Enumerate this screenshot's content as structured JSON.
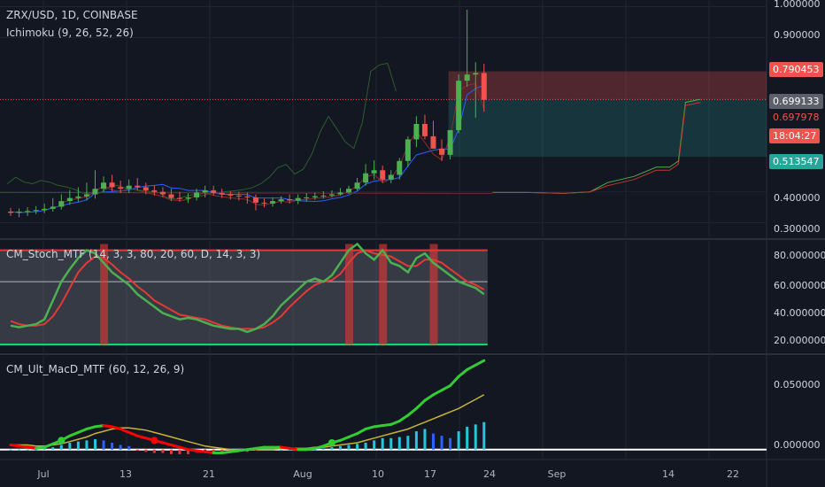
{
  "header": {
    "symbol": "ZRX/USD, 1D, COINBASE",
    "indicator1": "Ichimoku (9, 26, 52, 26)",
    "indicator2": "CM_Stoch_MTF (14, 3, 3, 80, 20, 60, D, 14, 3, 3)",
    "indicator3": "CM_Ult_MacD_MTF (60, 12, 26, 9)"
  },
  "price_axis": {
    "ticks": [
      "1.000000",
      "0.900000",
      "0.400000",
      "0.300000"
    ],
    "tags": {
      "red_zone": "0.790453",
      "current": "0.699133",
      "last": "0.697978",
      "countdown": "18:04:27",
      "green_zone": "0.513547"
    }
  },
  "stoch_axis": {
    "ticks": [
      "80.000000",
      "60.000000",
      "40.000000",
      "20.000000"
    ]
  },
  "macd_axis": {
    "ticks": [
      "0.050000",
      "0.000000"
    ]
  },
  "x_axis": {
    "ticks": [
      "Jul",
      "13",
      "21",
      "Aug",
      "10",
      "17",
      "24",
      "Sep",
      "14",
      "22"
    ]
  },
  "colors": {
    "background": "#131722",
    "bull": "#26a69a",
    "bull_green": "#4caf50",
    "bear": "#ef5350",
    "stoch_fast": "#4caf50",
    "stoch_slow": "#e53935",
    "macd_line_up": "#32cd32",
    "macd_line_down": "#ff0000",
    "signal": "#c8b432"
  },
  "chart_data": [
    {
      "type": "candlestick",
      "panel": "price",
      "x": [
        "Jun 27",
        "Jun 28",
        "Jun 29",
        "Jun 30",
        "Jul 1",
        "Jul 2",
        "Jul 3",
        "Jul 4",
        "Jul 5",
        "Jul 6",
        "Jul 7",
        "Jul 8",
        "Jul 9",
        "Jul 10",
        "Jul 11",
        "Jul 12",
        "Jul 13",
        "Jul 14",
        "Jul 15",
        "Jul 16",
        "Jul 17",
        "Jul 18",
        "Jul 19",
        "Jul 20",
        "Jul 21",
        "Jul 22",
        "Jul 23",
        "Jul 24",
        "Jul 25",
        "Jul 26",
        "Jul 27",
        "Jul 28",
        "Jul 29",
        "Jul 30",
        "Jul 31",
        "Aug 1",
        "Aug 2",
        "Aug 3",
        "Aug 4",
        "Aug 5",
        "Aug 6",
        "Aug 7",
        "Aug 8",
        "Aug 9",
        "Aug 10",
        "Aug 11",
        "Aug 12",
        "Aug 13",
        "Aug 14",
        "Aug 15",
        "Aug 16",
        "Aug 17",
        "Aug 18",
        "Aug 19",
        "Aug 20",
        "Aug 21",
        "Aug 22"
      ],
      "open": [
        0.336,
        0.332,
        0.336,
        0.338,
        0.341,
        0.345,
        0.352,
        0.37,
        0.38,
        0.385,
        0.392,
        0.41,
        0.43,
        0.415,
        0.41,
        0.42,
        0.415,
        0.405,
        0.4,
        0.392,
        0.38,
        0.378,
        0.382,
        0.398,
        0.405,
        0.396,
        0.392,
        0.388,
        0.385,
        0.382,
        0.365,
        0.362,
        0.37,
        0.376,
        0.372,
        0.38,
        0.382,
        0.386,
        0.388,
        0.392,
        0.398,
        0.41,
        0.43,
        0.46,
        0.47,
        0.44,
        0.455,
        0.5,
        0.57,
        0.62,
        0.58,
        0.54,
        0.52,
        0.6,
        0.76,
        0.78,
        0.785
      ],
      "high": [
        0.348,
        0.346,
        0.35,
        0.354,
        0.362,
        0.38,
        0.392,
        0.406,
        0.415,
        0.43,
        0.47,
        0.45,
        0.455,
        0.436,
        0.44,
        0.445,
        0.43,
        0.42,
        0.415,
        0.41,
        0.4,
        0.395,
        0.41,
        0.42,
        0.42,
        0.41,
        0.402,
        0.4,
        0.398,
        0.392,
        0.378,
        0.382,
        0.386,
        0.392,
        0.392,
        0.396,
        0.398,
        0.402,
        0.405,
        0.412,
        0.42,
        0.445,
        0.49,
        0.502,
        0.485,
        0.47,
        0.51,
        0.58,
        0.645,
        0.65,
        0.63,
        0.57,
        0.6,
        0.78,
        0.99,
        0.82,
        0.815
      ],
      "low": [
        0.322,
        0.318,
        0.322,
        0.328,
        0.331,
        0.336,
        0.342,
        0.358,
        0.368,
        0.372,
        0.378,
        0.4,
        0.402,
        0.396,
        0.396,
        0.404,
        0.392,
        0.388,
        0.382,
        0.37,
        0.368,
        0.364,
        0.372,
        0.382,
        0.388,
        0.38,
        0.375,
        0.372,
        0.362,
        0.34,
        0.35,
        0.352,
        0.362,
        0.362,
        0.36,
        0.368,
        0.374,
        0.378,
        0.382,
        0.388,
        0.394,
        0.404,
        0.42,
        0.44,
        0.43,
        0.428,
        0.44,
        0.48,
        0.545,
        0.57,
        0.54,
        0.5,
        0.505,
        0.59,
        0.74,
        0.64,
        0.66
      ],
      "close": [
        0.332,
        0.336,
        0.338,
        0.341,
        0.345,
        0.352,
        0.37,
        0.38,
        0.385,
        0.392,
        0.41,
        0.43,
        0.415,
        0.41,
        0.42,
        0.415,
        0.405,
        0.4,
        0.392,
        0.38,
        0.378,
        0.382,
        0.398,
        0.405,
        0.396,
        0.392,
        0.388,
        0.385,
        0.382,
        0.365,
        0.362,
        0.37,
        0.376,
        0.372,
        0.38,
        0.382,
        0.386,
        0.388,
        0.392,
        0.398,
        0.41,
        0.43,
        0.46,
        0.47,
        0.44,
        0.455,
        0.5,
        0.57,
        0.62,
        0.58,
        0.54,
        0.52,
        0.6,
        0.76,
        0.78,
        0.785,
        0.698
      ],
      "ylim": [
        0.27,
        1.01
      ]
    },
    {
      "type": "line",
      "panel": "stochastic",
      "ylim": [
        15,
        86
      ],
      "series": [
        {
          "values": [
            32,
            31,
            32,
            33,
            36,
            48,
            60,
            68,
            75,
            80,
            78,
            72,
            66,
            62,
            58,
            52,
            48,
            44,
            40,
            38,
            36,
            37,
            36,
            34,
            32,
            31,
            30,
            30,
            28,
            30,
            33,
            38,
            45,
            50,
            55,
            60,
            62,
            60,
            64,
            72,
            80,
            84,
            78,
            74,
            80,
            72,
            70,
            66,
            75,
            78,
            72,
            68,
            64,
            60,
            58,
            56,
            52
          ]
        },
        {
          "values": [
            35,
            33,
            32,
            32,
            33,
            38,
            46,
            56,
            66,
            72,
            76,
            75,
            71,
            66,
            62,
            57,
            53,
            48,
            45,
            42,
            39,
            38,
            37,
            36,
            34,
            32,
            31,
            30,
            30,
            30,
            31,
            34,
            38,
            44,
            49,
            54,
            58,
            60,
            61,
            65,
            72,
            78,
            80,
            78,
            77,
            76,
            73,
            70,
            70,
            74,
            74,
            72,
            68,
            64,
            60,
            58,
            55
          ]
        }
      ],
      "reference_levels": [
        80,
        60,
        20
      ]
    },
    {
      "type": "bar",
      "panel": "macd",
      "ylim": [
        -0.008,
        0.082
      ],
      "histogram": [
        0.0,
        0.0,
        0.0,
        0.0,
        0.001,
        0.002,
        0.004,
        0.006,
        0.007,
        0.008,
        0.009,
        0.008,
        0.006,
        0.004,
        0.003,
        -0.001,
        -0.002,
        -0.003,
        -0.003,
        -0.004,
        -0.004,
        -0.004,
        -0.003,
        -0.002,
        -0.002,
        -0.002,
        -0.002,
        -0.002,
        -0.002,
        -0.001,
        0.0,
        0.0,
        0.0,
        0.0,
        0.0,
        0.0,
        0.0,
        0.001,
        0.002,
        0.003,
        0.004,
        0.005,
        0.006,
        0.008,
        0.01,
        0.01,
        0.011,
        0.012,
        0.016,
        0.018,
        0.014,
        0.012,
        0.01,
        0.016,
        0.02,
        0.022,
        0.024
      ],
      "macd": [
        0.004,
        0.003,
        0.002,
        0.001,
        0.002,
        0.005,
        0.008,
        0.012,
        0.015,
        0.018,
        0.02,
        0.021,
        0.02,
        0.018,
        0.015,
        0.012,
        0.01,
        0.008,
        0.006,
        0.004,
        0.002,
        0.0,
        -0.001,
        -0.002,
        -0.003,
        -0.003,
        -0.002,
        -0.001,
        0.0,
        0.001,
        0.002,
        0.002,
        0.002,
        0.001,
        0.0,
        0.0,
        0.001,
        0.003,
        0.006,
        0.008,
        0.011,
        0.014,
        0.018,
        0.02,
        0.021,
        0.022,
        0.025,
        0.03,
        0.036,
        0.043,
        0.048,
        0.052,
        0.056,
        0.064,
        0.07,
        0.074,
        0.078
      ],
      "signal": [
        0.004,
        0.004,
        0.004,
        0.003,
        0.003,
        0.004,
        0.005,
        0.007,
        0.009,
        0.011,
        0.014,
        0.016,
        0.018,
        0.019,
        0.019,
        0.018,
        0.017,
        0.015,
        0.013,
        0.011,
        0.009,
        0.007,
        0.005,
        0.003,
        0.002,
        0.001,
        0.0,
        0.0,
        0.0,
        0.0,
        0.0,
        0.0,
        0.001,
        0.001,
        0.001,
        0.001,
        0.002,
        0.002,
        0.003,
        0.004,
        0.005,
        0.006,
        0.008,
        0.01,
        0.012,
        0.014,
        0.016,
        0.018,
        0.021,
        0.024,
        0.027,
        0.03,
        0.033,
        0.036,
        0.04,
        0.044,
        0.048
      ],
      "zero_line": 0
    }
  ]
}
